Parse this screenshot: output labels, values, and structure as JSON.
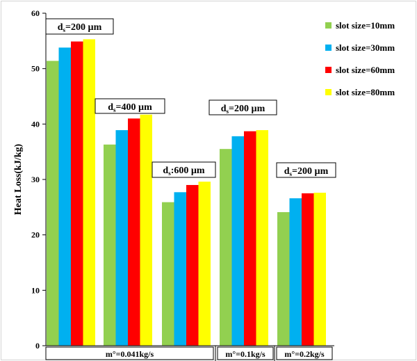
{
  "chart_data": {
    "type": "bar",
    "title": "",
    "xlabel": "",
    "ylabel": "Heat Loss(kJ/kg)",
    "ylim": [
      0,
      60
    ],
    "yticks": [
      0,
      10,
      20,
      30,
      40,
      50,
      60
    ],
    "grid": false,
    "legend_position": "top-right",
    "categories": [
      "m°=0.041kg/s, ds=200 µm",
      "m°=0.041kg/s, ds=400 µm",
      "m°=0.041kg/s, ds:600 µm",
      "m°=0.1kg/s, ds=200 µm",
      "m°=0.2kg/s, ds=200 µm"
    ],
    "series": [
      {
        "name": "slot size=10mm",
        "color": "#92d050",
        "values": [
          51.4,
          36.3,
          25.9,
          35.5,
          24.1
        ]
      },
      {
        "name": "slot size=30mm",
        "color": "#00b0f0",
        "values": [
          53.8,
          38.9,
          27.7,
          37.8,
          26.6
        ]
      },
      {
        "name": "slot size=60mm",
        "color": "#ff0000",
        "values": [
          54.9,
          41.0,
          29.0,
          38.7,
          27.5
        ]
      },
      {
        "name": "slot size=80mm",
        "color": "#ffff00",
        "values": [
          55.3,
          41.7,
          29.6,
          38.9,
          27.6
        ]
      }
    ],
    "annotations": [
      {
        "sub": "s",
        "text_pre": "d",
        "text_post": "=200 µm"
      },
      {
        "sub": "s",
        "text_pre": "d",
        "text_post": "=400 µm"
      },
      {
        "sub": "s",
        "text_pre": "d",
        "text_post": ":600 µm"
      },
      {
        "sub": "s",
        "text_pre": "d",
        "text_post": "=200 µm"
      },
      {
        "sub": "s",
        "text_pre": "d",
        "text_post": "=200 µm"
      }
    ],
    "flow_labels": [
      "m°=0.041kg/s",
      "m°=0.1kg/s",
      "m°=0.2kg/s"
    ]
  }
}
